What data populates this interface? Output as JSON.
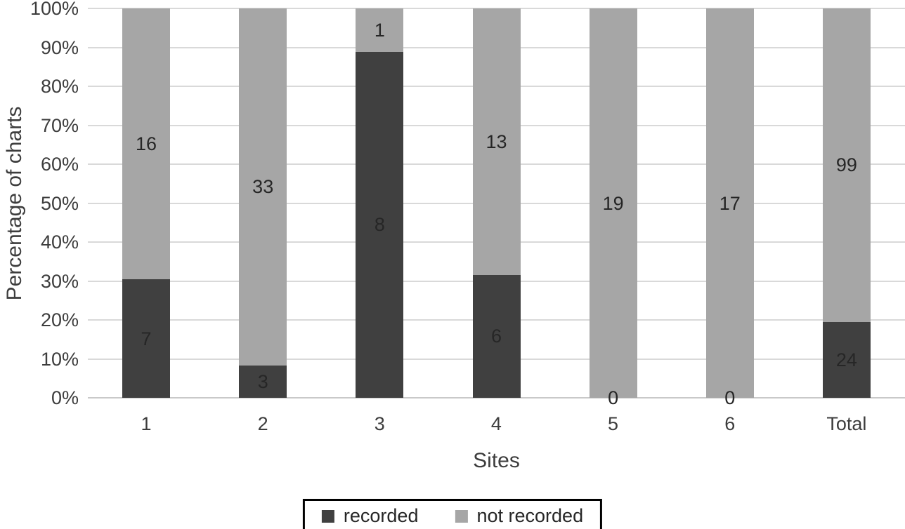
{
  "chart_data": {
    "type": "bar",
    "stacked": true,
    "stacked_mode": "percent",
    "title": "",
    "xlabel": "Sites",
    "ylabel": "Percentage of charts",
    "categories": [
      "1",
      "2",
      "3",
      "4",
      "5",
      "6",
      "Total"
    ],
    "series": [
      {
        "name": "recorded",
        "color": "#404040",
        "values": [
          7,
          3,
          8,
          6,
          0,
          0,
          24
        ]
      },
      {
        "name": "not recorded",
        "color": "#a6a6a6",
        "values": [
          16,
          33,
          1,
          13,
          19,
          17,
          99
        ]
      }
    ],
    "y_ticks": [
      "0%",
      "10%",
      "20%",
      "30%",
      "40%",
      "50%",
      "60%",
      "70%",
      "80%",
      "90%",
      "100%"
    ],
    "ylim": [
      0,
      100
    ],
    "grid": true,
    "gridline_color": "#d9d9d9",
    "legend_position": "bottom"
  }
}
